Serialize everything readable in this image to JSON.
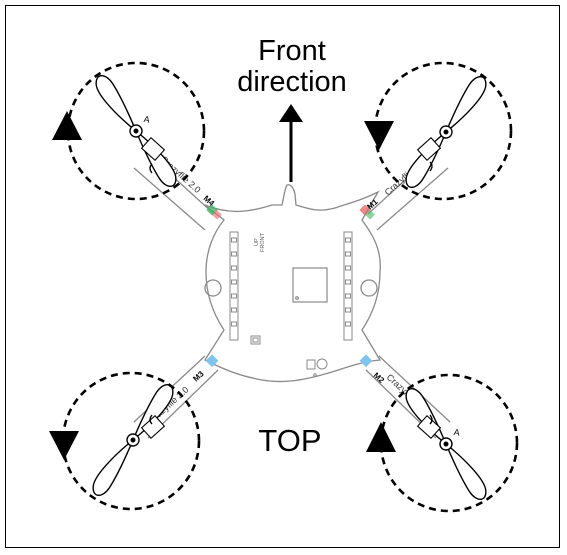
{
  "diagram": {
    "front_label_line1": "Front",
    "front_label_line2": "direction",
    "bottom_label": "TOP",
    "board_small_text": "UP\nFRONT",
    "motor_labels": {
      "front_left": "M4",
      "front_right": "M1",
      "back_left": "M3",
      "back_right": "M2"
    },
    "arm_silkscreen": "Crazyflie 2.0",
    "propeller_mark": "A",
    "colors": {
      "line": "#000000",
      "board_outline": "#8a8a8a",
      "led_green": "#49b86a",
      "led_red": "#e66a6a",
      "led_blue": "#7fc4ec"
    },
    "rotation": {
      "front_left": "counter-clockwise",
      "front_right": "clockwise",
      "back_left": "clockwise",
      "back_right": "counter-clockwise"
    }
  }
}
